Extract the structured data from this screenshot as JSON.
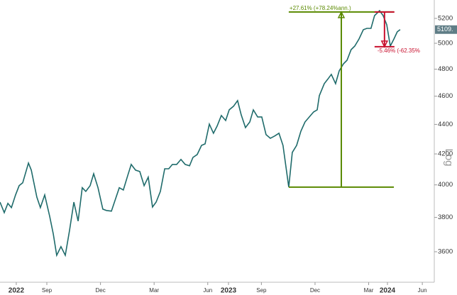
{
  "chart_data": {
    "type": "line",
    "log": true,
    "scale_label": "Log",
    "color": "#1f6b6b",
    "x": [
      5.38,
      5.62,
      5.82,
      6.02,
      6.25,
      6.45,
      6.65,
      6.97,
      7.13,
      7.44,
      7.64,
      7.88,
      8.16,
      8.36,
      8.55,
      8.79,
      9.03,
      9.27,
      9.51,
      9.75,
      9.98,
      10.18,
      10.42,
      10.62,
      10.86,
      11.13,
      11.33,
      11.61,
      11.85,
      12.05,
      12.28,
      12.52,
      12.72,
      12.96,
      13.2,
      13.44,
      13.67,
      13.91,
      14.11,
      14.35,
      14.59,
      14.82,
      15.02,
      15.26,
      15.5,
      15.74,
      15.98,
      16.17,
      16.41,
      16.65,
      16.85,
      17.09,
      17.32,
      17.52,
      17.76,
      18.0,
      18.2,
      18.44,
      18.67,
      18.87,
      19.11,
      19.35,
      19.55,
      19.79,
      20.02,
      20.26,
      20.5,
      20.74,
      20.98,
      21.21,
      21.53,
      21.73,
      21.97,
      22.21,
      22.44,
      22.68,
      22.92,
      23.12,
      23.24,
      23.52,
      23.71,
      23.91,
      24.15,
      24.35,
      24.59,
      24.79,
      25.02,
      25.22,
      25.46,
      25.7,
      25.9,
      26.13,
      26.33,
      26.61,
      26.81,
      27.01,
      27.21,
      27.41,
      27.6,
      27.76
    ],
    "values": [
      3893,
      3829,
      3885,
      3859,
      3937,
      3995,
      4013,
      4140,
      4094,
      3924,
      3859,
      3937,
      3807,
      3702,
      3580,
      3629,
      3580,
      3723,
      3893,
      3778,
      3982,
      3959,
      3995,
      4071,
      3982,
      3850,
      3842,
      3838,
      3915,
      3982,
      3968,
      4058,
      4131,
      4094,
      4085,
      3995,
      4049,
      3863,
      3893,
      3959,
      4103,
      4103,
      4131,
      4131,
      4164,
      4131,
      4122,
      4177,
      4196,
      4257,
      4267,
      4402,
      4339,
      4388,
      4462,
      4427,
      4502,
      4528,
      4568,
      4467,
      4378,
      4417,
      4502,
      4452,
      4452,
      4330,
      4305,
      4320,
      4339,
      4257,
      3986,
      4210,
      4257,
      4353,
      4417,
      4452,
      4487,
      4502,
      4604,
      4692,
      4724,
      4761,
      4692,
      4787,
      4841,
      4868,
      4950,
      4978,
      5034,
      5108,
      5119,
      5119,
      5223,
      5264,
      5223,
      5148,
      4978,
      5034,
      5091,
      5109
    ],
    "last_price_label": "5109.",
    "xlim": [
      5.38,
      29.67
    ],
    "ylim": [
      3431,
      5353
    ],
    "xticks": [
      {
        "value": 6.29,
        "label": "2022"
      },
      {
        "value": 8,
        "label": "Sep"
      },
      {
        "value": 11,
        "label": "Dec"
      },
      {
        "value": 14,
        "label": "Mar"
      },
      {
        "value": 17,
        "label": "Jun"
      },
      {
        "value": 18.16,
        "label": "2023"
      },
      {
        "value": 20,
        "label": "Sep"
      },
      {
        "value": 23,
        "label": "Dec"
      },
      {
        "value": 26,
        "label": "Mar"
      },
      {
        "value": 27.05,
        "label": "2024"
      },
      {
        "value": 29,
        "label": "Jun"
      }
    ],
    "yticks": [
      3600,
      3800,
      4000,
      4200,
      4400,
      4600,
      4800,
      5000,
      5200
    ],
    "annotations": [
      {
        "label": "+27.61% (+78.24%ann.)",
        "from": 3986,
        "to": 5253,
        "x": [
          21.53,
          27.41
        ],
        "color": "#5a8a00"
      },
      {
        "label": "-5.46% (-62.35%",
        "from": 5253,
        "to": 4973,
        "x": [
          26.33,
          27.44
        ],
        "color": "#c8102e"
      }
    ]
  }
}
